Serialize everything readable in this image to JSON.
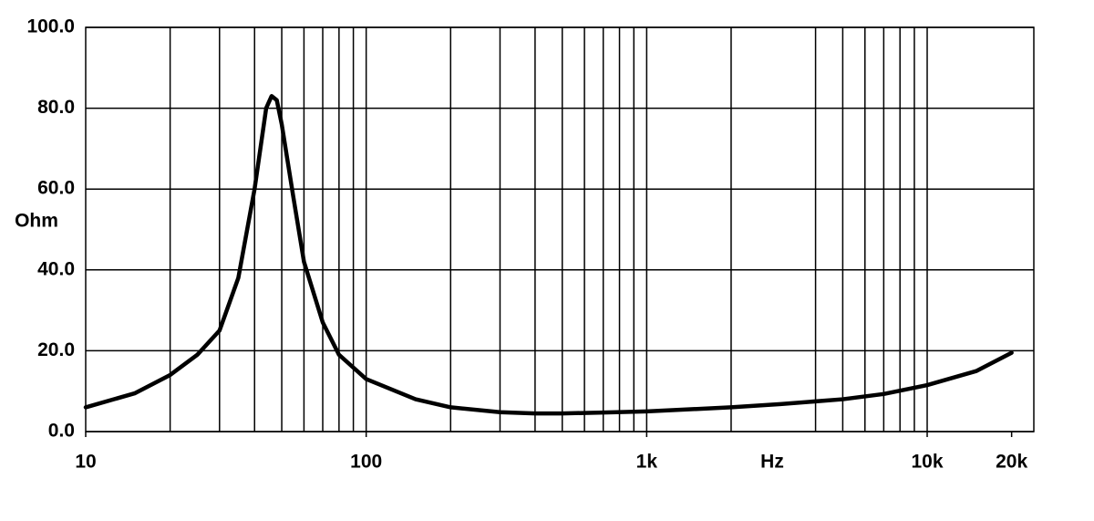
{
  "chart_data": {
    "type": "line",
    "log_x": true,
    "x_label": "Hz",
    "y_label": "Ohm",
    "x": [
      10,
      15,
      20,
      25,
      30,
      35,
      40,
      44,
      46,
      48,
      50,
      55,
      60,
      70,
      80,
      100,
      150,
      200,
      300,
      400,
      500,
      700,
      1000,
      2000,
      3000,
      5000,
      7000,
      10000,
      15000,
      20000
    ],
    "series": [
      {
        "color": "#000000",
        "values": [
          6,
          9.5,
          14,
          19,
          25,
          38,
          60,
          80,
          83,
          82,
          76,
          58,
          42,
          27,
          19,
          13,
          8,
          6,
          4.8,
          4.5,
          4.5,
          4.7,
          5,
          6,
          6.8,
          8,
          9.3,
          11.5,
          15,
          19.5
        ]
      }
    ],
    "xlim": [
      10,
      24000
    ],
    "xticks": [
      {
        "value": 10,
        "label": "10"
      },
      {
        "value": 100,
        "label": "100"
      },
      {
        "value": 1000,
        "label": "1k"
      },
      {
        "value": 10000,
        "label": "10k"
      },
      {
        "value": 20000,
        "label": "20k"
      }
    ],
    "xgrid": [
      20,
      30,
      40,
      50,
      60,
      70,
      80,
      90,
      100,
      200,
      300,
      400,
      500,
      600,
      700,
      800,
      900,
      1000,
      2000,
      4000,
      5000,
      6000,
      7000,
      8000,
      9000,
      10000
    ],
    "ylim": [
      0,
      100
    ],
    "yticks": [
      {
        "value": 0,
        "label": "0.0"
      },
      {
        "value": 20,
        "label": "20.0"
      },
      {
        "value": 40,
        "label": "40.0"
      },
      {
        "value": 60,
        "label": "60.0"
      },
      {
        "value": 80,
        "label": "80.0"
      },
      {
        "value": 100,
        "label": "100.0"
      }
    ],
    "grid": true
  }
}
